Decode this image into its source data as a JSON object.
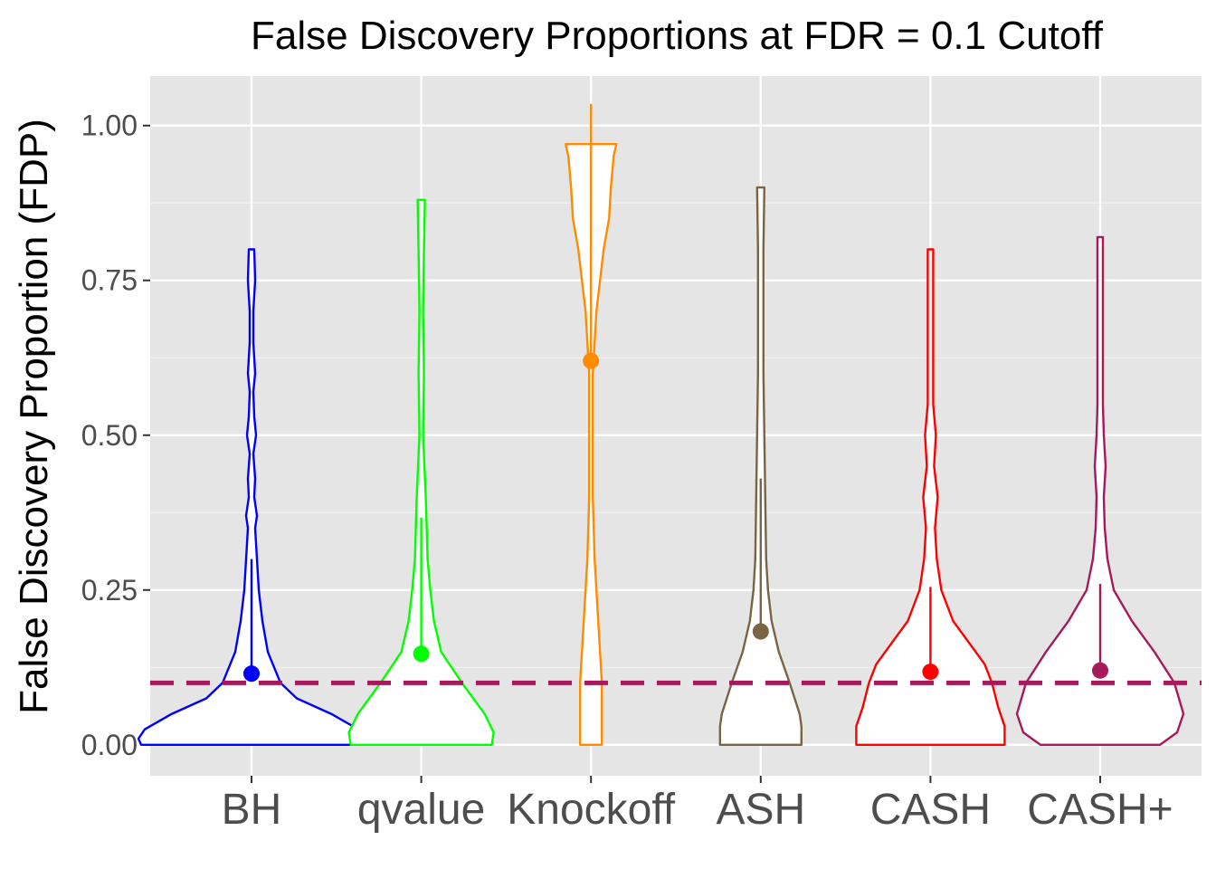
{
  "chart_data": {
    "type": "violin",
    "title": "False Discovery Proportions at FDR = 0.1 Cutoff",
    "xlabel": "",
    "ylabel": "False Discovery Proportion (FDP)",
    "ylim": [
      -0.05,
      1.08
    ],
    "yticks": [
      0.0,
      0.25,
      0.5,
      0.75,
      1.0
    ],
    "ytick_labels": [
      "0.00",
      "0.25",
      "0.50",
      "0.75",
      "1.00"
    ],
    "grid": true,
    "reference_line": {
      "y": 0.1,
      "style": "dashed",
      "color": "#a6195a"
    },
    "categories": [
      "BH",
      "qvalue",
      "Knockoff",
      "ASH",
      "CASH",
      "CASH+"
    ],
    "series": [
      {
        "name": "BH",
        "color": "#0000ff",
        "mean": 0.115,
        "whisker": [
          0.115,
          0.3
        ],
        "violin": [
          [
            0,
            0.122
          ],
          [
            0.01,
            0.125
          ],
          [
            0.025,
            0.118
          ],
          [
            0.05,
            0.088
          ],
          [
            0.075,
            0.05
          ],
          [
            0.1,
            0.032
          ],
          [
            0.15,
            0.018
          ],
          [
            0.2,
            0.012
          ],
          [
            0.25,
            0.008
          ],
          [
            0.3,
            0.006
          ],
          [
            0.35,
            0.004
          ],
          [
            0.37,
            0.006
          ],
          [
            0.4,
            0.003
          ],
          [
            0.43,
            0.004
          ],
          [
            0.47,
            0.002
          ],
          [
            0.5,
            0.005
          ],
          [
            0.53,
            0.003
          ],
          [
            0.57,
            0.002
          ],
          [
            0.6,
            0.004
          ],
          [
            0.65,
            0.002
          ],
          [
            0.7,
            0.002
          ],
          [
            0.75,
            0.004
          ],
          [
            0.8,
            0.003
          ]
        ]
      },
      {
        "name": "qvalue",
        "color": "#00ff00",
        "mean": 0.147,
        "whisker": [
          0.147,
          0.367
        ],
        "violin": [
          [
            0,
            0.078
          ],
          [
            0.02,
            0.08
          ],
          [
            0.05,
            0.07
          ],
          [
            0.1,
            0.045
          ],
          [
            0.15,
            0.022
          ],
          [
            0.2,
            0.014
          ],
          [
            0.25,
            0.01
          ],
          [
            0.3,
            0.007
          ],
          [
            0.4,
            0.005
          ],
          [
            0.5,
            0.002
          ],
          [
            0.6,
            0.003
          ],
          [
            0.7,
            0.002
          ],
          [
            0.8,
            0.003
          ],
          [
            0.88,
            0.004
          ]
        ]
      },
      {
        "name": "Knockoff",
        "color": "#ff8c00",
        "mean": 0.62,
        "whisker": [
          0.62,
          1.035
        ],
        "violin": [
          [
            0,
            0.012
          ],
          [
            0.05,
            0.012
          ],
          [
            0.1,
            0.012
          ],
          [
            0.15,
            0.01
          ],
          [
            0.2,
            0.008
          ],
          [
            0.25,
            0.006
          ],
          [
            0.3,
            0.004
          ],
          [
            0.4,
            0.002
          ],
          [
            0.5,
            0.002
          ],
          [
            0.6,
            0.002
          ],
          [
            0.7,
            0.006
          ],
          [
            0.8,
            0.014
          ],
          [
            0.85,
            0.02
          ],
          [
            0.9,
            0.022
          ],
          [
            0.95,
            0.025
          ],
          [
            0.97,
            0.028
          ]
        ]
      },
      {
        "name": "ASH",
        "color": "#7a6444",
        "mean": 0.183,
        "whisker": [
          0.183,
          0.43
        ],
        "violin": [
          [
            0,
            0.045
          ],
          [
            0.03,
            0.045
          ],
          [
            0.05,
            0.043
          ],
          [
            0.1,
            0.032
          ],
          [
            0.15,
            0.02
          ],
          [
            0.2,
            0.012
          ],
          [
            0.25,
            0.008
          ],
          [
            0.3,
            0.006
          ],
          [
            0.4,
            0.005
          ],
          [
            0.5,
            0.004
          ],
          [
            0.6,
            0.003
          ],
          [
            0.7,
            0.003
          ],
          [
            0.8,
            0.003
          ],
          [
            0.9,
            0.004
          ]
        ]
      },
      {
        "name": "CASH",
        "color": "#ff0000",
        "mean": 0.118,
        "whisker": [
          0.118,
          0.255
        ],
        "violin": [
          [
            0,
            0.082
          ],
          [
            0.03,
            0.082
          ],
          [
            0.06,
            0.075
          ],
          [
            0.1,
            0.068
          ],
          [
            0.13,
            0.06
          ],
          [
            0.16,
            0.045
          ],
          [
            0.2,
            0.025
          ],
          [
            0.25,
            0.012
          ],
          [
            0.3,
            0.007
          ],
          [
            0.35,
            0.005
          ],
          [
            0.4,
            0.008
          ],
          [
            0.45,
            0.004
          ],
          [
            0.5,
            0.006
          ],
          [
            0.55,
            0.003
          ],
          [
            0.6,
            0.003
          ],
          [
            0.7,
            0.003
          ],
          [
            0.8,
            0.003
          ]
        ]
      },
      {
        "name": "CASH+",
        "color": "#a6195a",
        "mean": 0.12,
        "whisker": [
          0.12,
          0.26
        ],
        "violin": [
          [
            0,
            0.066
          ],
          [
            0.02,
            0.085
          ],
          [
            0.05,
            0.092
          ],
          [
            0.1,
            0.082
          ],
          [
            0.15,
            0.06
          ],
          [
            0.2,
            0.035
          ],
          [
            0.25,
            0.015
          ],
          [
            0.3,
            0.008
          ],
          [
            0.35,
            0.005
          ],
          [
            0.4,
            0.004
          ],
          [
            0.45,
            0.006
          ],
          [
            0.5,
            0.004
          ],
          [
            0.55,
            0.003
          ],
          [
            0.6,
            0.003
          ],
          [
            0.7,
            0.003
          ],
          [
            0.8,
            0.003
          ],
          [
            0.82,
            0.003
          ]
        ]
      }
    ]
  }
}
